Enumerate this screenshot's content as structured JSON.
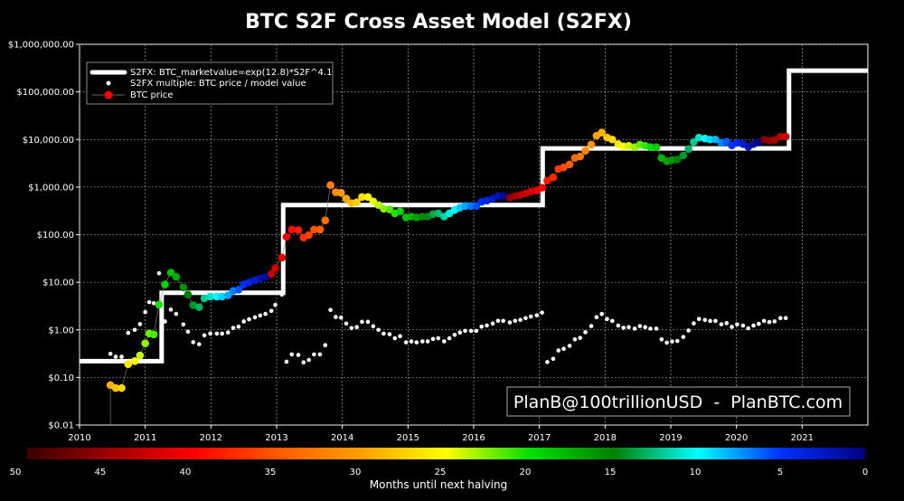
{
  "chart_data": {
    "type": "scatter",
    "title": "BTC S2F Cross Asset Model (S2FX)",
    "y_scale": "log",
    "ylim": [
      0.01,
      1000000
    ],
    "xlim": [
      2010,
      2022
    ],
    "grid": true,
    "legend_placement": "top-left",
    "y_ticks": [
      {
        "v": 1000000,
        "label": "$1,000,000.00"
      },
      {
        "v": 100000,
        "label": "$100,000.00"
      },
      {
        "v": 10000,
        "label": "$10,000.00"
      },
      {
        "v": 1000,
        "label": "$1,000.00"
      },
      {
        "v": 100,
        "label": "$100.00"
      },
      {
        "v": 10,
        "label": "$10.00"
      },
      {
        "v": 1,
        "label": "$1.00"
      },
      {
        "v": 0.1,
        "label": "$0.10"
      },
      {
        "v": 0.01,
        "label": "$0.01"
      }
    ],
    "x_ticks": [
      "2010",
      "2011",
      "2012",
      "2013",
      "2014",
      "2015",
      "2016",
      "2017",
      "2018",
      "2019",
      "2020",
      "2021"
    ],
    "legend": [
      "S2FX: BTC_marketvalue=exp(12.8)*S2F^4.1",
      "S2FX multiple: BTC price / model value",
      "BTC price"
    ],
    "model_steps": [
      {
        "from": 2010.0,
        "to": 2011.25,
        "value": 0.22
      },
      {
        "from": 2011.25,
        "to": 2013.1,
        "value": 6
      },
      {
        "from": 2013.1,
        "to": 2017.05,
        "value": 420
      },
      {
        "from": 2017.05,
        "to": 2020.8,
        "value": 6500
      },
      {
        "from": 2020.8,
        "to": 2022.0,
        "value": 280000
      }
    ],
    "halvings": [
      2012.91,
      2016.52,
      2020.36,
      2024.3
    ],
    "btc_price": [
      [
        2010.47,
        0.069
      ],
      [
        2010.55,
        0.06
      ],
      [
        2010.64,
        0.06
      ],
      [
        2010.74,
        0.19
      ],
      [
        2010.84,
        0.22
      ],
      [
        2010.92,
        0.29
      ],
      [
        2011.0,
        0.52
      ],
      [
        2011.06,
        0.84
      ],
      [
        2011.13,
        0.8
      ],
      [
        2011.21,
        3.4
      ],
      [
        2011.3,
        9
      ],
      [
        2011.39,
        16
      ],
      [
        2011.47,
        13
      ],
      [
        2011.58,
        7.8
      ],
      [
        2011.65,
        5.5
      ],
      [
        2011.73,
        3.3
      ],
      [
        2011.82,
        3
      ],
      [
        2011.9,
        4.6
      ],
      [
        2011.99,
        5
      ],
      [
        2012.09,
        5
      ],
      [
        2012.17,
        5
      ],
      [
        2012.26,
        5.3
      ],
      [
        2012.34,
        6.6
      ],
      [
        2012.42,
        7
      ],
      [
        2012.5,
        9
      ],
      [
        2012.58,
        10
      ],
      [
        2012.67,
        11
      ],
      [
        2012.75,
        12
      ],
      [
        2012.83,
        13
      ],
      [
        2012.92,
        15
      ],
      [
        2012.98,
        20
      ],
      [
        2013.08,
        33
      ],
      [
        2013.15,
        90
      ],
      [
        2013.23,
        128
      ],
      [
        2013.33,
        125
      ],
      [
        2013.41,
        87
      ],
      [
        2013.49,
        98
      ],
      [
        2013.57,
        128
      ],
      [
        2013.66,
        128
      ],
      [
        2013.74,
        200
      ],
      [
        2013.82,
        1100
      ],
      [
        2013.9,
        780
      ],
      [
        2013.98,
        760
      ],
      [
        2014.06,
        570
      ],
      [
        2014.14,
        460
      ],
      [
        2014.22,
        480
      ],
      [
        2014.3,
        620
      ],
      [
        2014.39,
        620
      ],
      [
        2014.47,
        500
      ],
      [
        2014.55,
        420
      ],
      [
        2014.63,
        350
      ],
      [
        2014.72,
        340
      ],
      [
        2014.8,
        280
      ],
      [
        2014.88,
        310
      ],
      [
        2014.97,
        230
      ],
      [
        2015.05,
        240
      ],
      [
        2015.13,
        230
      ],
      [
        2015.22,
        240
      ],
      [
        2015.3,
        240
      ],
      [
        2015.38,
        270
      ],
      [
        2015.46,
        280
      ],
      [
        2015.55,
        240
      ],
      [
        2015.63,
        280
      ],
      [
        2015.71,
        330
      ],
      [
        2015.79,
        370
      ],
      [
        2015.87,
        400
      ],
      [
        2015.96,
        400
      ],
      [
        2016.04,
        400
      ],
      [
        2016.12,
        490
      ],
      [
        2016.2,
        520
      ],
      [
        2016.29,
        570
      ],
      [
        2016.37,
        650
      ],
      [
        2016.45,
        650
      ],
      [
        2016.55,
        600
      ],
      [
        2016.63,
        650
      ],
      [
        2016.71,
        680
      ],
      [
        2016.79,
        740
      ],
      [
        2016.87,
        800
      ],
      [
        2016.96,
        850
      ],
      [
        2017.04,
        970
      ],
      [
        2017.12,
        1370
      ],
      [
        2017.21,
        1600
      ],
      [
        2017.29,
        2400
      ],
      [
        2017.37,
        2600
      ],
      [
        2017.46,
        3000
      ],
      [
        2017.54,
        4100
      ],
      [
        2017.62,
        4400
      ],
      [
        2017.7,
        5800
      ],
      [
        2017.79,
        7800
      ],
      [
        2017.87,
        12000
      ],
      [
        2017.95,
        14000
      ],
      [
        2018.03,
        11000
      ],
      [
        2018.11,
        10000
      ],
      [
        2018.2,
        8000
      ],
      [
        2018.28,
        7200
      ],
      [
        2018.36,
        7400
      ],
      [
        2018.45,
        6900
      ],
      [
        2018.53,
        7800
      ],
      [
        2018.61,
        7400
      ],
      [
        2018.69,
        6900
      ],
      [
        2018.78,
        6900
      ],
      [
        2018.86,
        4100
      ],
      [
        2018.94,
        3500
      ],
      [
        2019.02,
        3700
      ],
      [
        2019.1,
        3800
      ],
      [
        2019.19,
        4600
      ],
      [
        2019.27,
        6300
      ],
      [
        2019.35,
        8900
      ],
      [
        2019.43,
        11000
      ],
      [
        2019.52,
        10500
      ],
      [
        2019.6,
        10000
      ],
      [
        2019.68,
        10000
      ],
      [
        2019.77,
        8500
      ],
      [
        2019.85,
        9000
      ],
      [
        2019.93,
        7500
      ],
      [
        2020.01,
        8500
      ],
      [
        2020.1,
        8000
      ],
      [
        2020.18,
        7000
      ],
      [
        2020.26,
        8000
      ],
      [
        2020.34,
        8700
      ],
      [
        2020.42,
        10000
      ],
      [
        2020.5,
        9500
      ],
      [
        2020.58,
        9800
      ],
      [
        2020.67,
        11500
      ],
      [
        2020.75,
        11500
      ]
    ],
    "colorbar": {
      "label": "Months until next halving",
      "ticks": [
        "50",
        "45",
        "40",
        "35",
        "30",
        "25",
        "20",
        "15",
        "10",
        "5",
        "0"
      ],
      "colors": [
        "#3a0000",
        "#a00000",
        "#ff0000",
        "#ff5a00",
        "#ffa000",
        "#ffff00",
        "#00e000",
        "#008000",
        "#00ffff",
        "#0030ff",
        "#000080"
      ]
    }
  },
  "watermark": "PlanB@100trillionUSD  -  PlanBTC.com"
}
